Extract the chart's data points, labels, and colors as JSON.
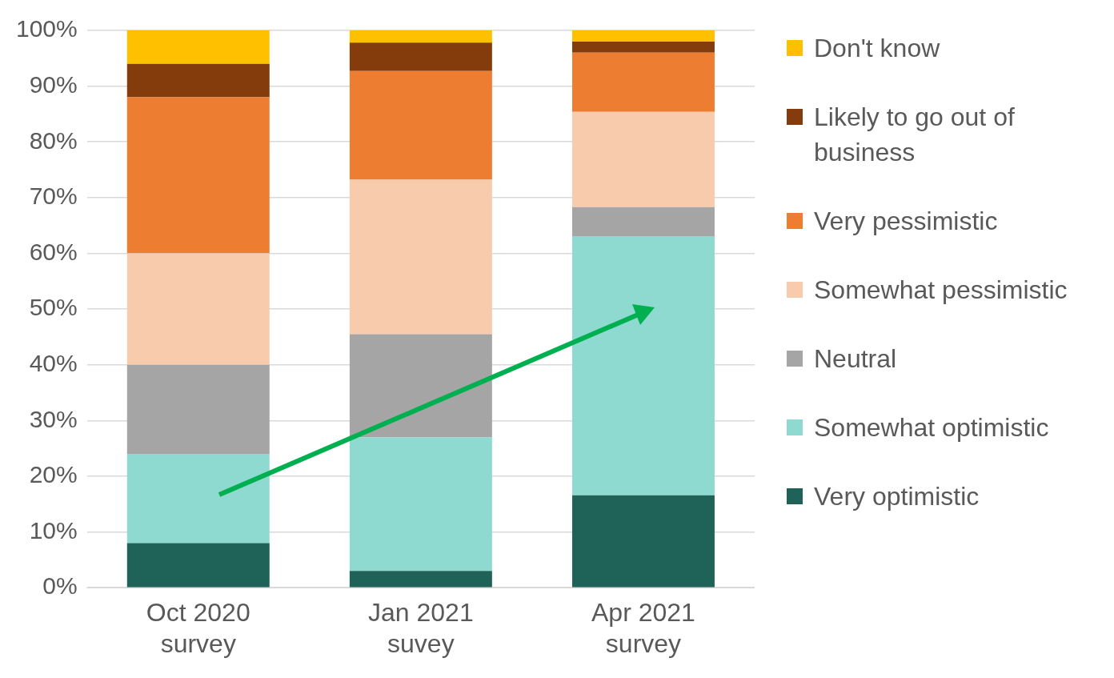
{
  "chart_data": {
    "type": "bar",
    "stacked": true,
    "categories": [
      "Oct 2020 survey",
      "Jan 2021 suvey",
      "Apr 2021 survey"
    ],
    "series": [
      {
        "name": "Very optimistic",
        "color": "#1f6358",
        "values": [
          8,
          3,
          16.6
        ]
      },
      {
        "name": "Somewhat optimistic",
        "color": "#8edad0",
        "values": [
          16,
          24,
          46.5
        ]
      },
      {
        "name": "Neutral",
        "color": "#a5a5a5",
        "values": [
          16,
          18.5,
          5.2
        ]
      },
      {
        "name": "Somewhat pessimistic",
        "color": "#f8cbad",
        "values": [
          20,
          27.7,
          17.1
        ]
      },
      {
        "name": "Very pessimistic",
        "color": "#ed7d31",
        "values": [
          28,
          19.5,
          10.6
        ]
      },
      {
        "name": "Likely to go out of business",
        "color": "#843c0c",
        "values": [
          6,
          5.1,
          2
        ]
      },
      {
        "name": "Don't know",
        "color": "#ffc000",
        "values": [
          6,
          2.2,
          2
        ]
      }
    ],
    "ylim": [
      0,
      100
    ],
    "yticks": [
      {
        "value": 0,
        "label": "0%"
      },
      {
        "value": 10,
        "label": "10%"
      },
      {
        "value": 20,
        "label": "20%"
      },
      {
        "value": 30,
        "label": "30%"
      },
      {
        "value": 40,
        "label": "40%"
      },
      {
        "value": 50,
        "label": "50%"
      },
      {
        "value": 60,
        "label": "60%"
      },
      {
        "value": 70,
        "label": "70%"
      },
      {
        "value": 80,
        "label": "80%"
      },
      {
        "value": 90,
        "label": "90%"
      },
      {
        "value": 100,
        "label": "100%"
      }
    ],
    "grid": "y",
    "legend": "right"
  }
}
